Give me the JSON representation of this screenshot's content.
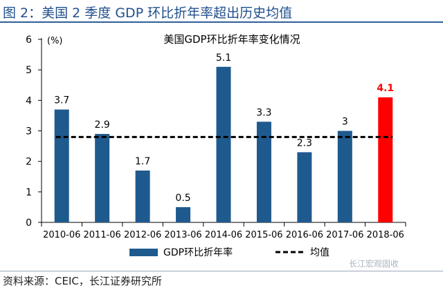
{
  "figure": {
    "title": "图 2：美国 2 季度 GDP 环比折年率超出历史均值",
    "source": "资料来源：CEIC，长江证券研究所",
    "watermark": "长江宏观固收"
  },
  "chart_data": {
    "type": "bar",
    "title": "美国GDP环比折年率变化情况",
    "unit_label": "(%)",
    "categories": [
      "2010-06",
      "2011-06",
      "2012-06",
      "2013-06",
      "2014-06",
      "2015-06",
      "2016-06",
      "2017-06",
      "2018-06"
    ],
    "series": [
      {
        "name": "GDP环比折年率",
        "values": [
          3.7,
          2.9,
          1.7,
          0.5,
          5.1,
          3.3,
          2.3,
          3.0,
          4.1
        ]
      }
    ],
    "value_labels": [
      "3.7",
      "2.9",
      "1.7",
      "0.5",
      "5.1",
      "3.3",
      "2.3",
      "3",
      "4.1"
    ],
    "mean_line": {
      "name": "均值",
      "value": 2.8
    },
    "highlight_index": 8,
    "ylim": [
      0,
      6
    ],
    "yticks": [
      0,
      1,
      2,
      3,
      4,
      5,
      6
    ],
    "grid": false,
    "legend_position": "bottom-center",
    "colors": {
      "bar": "#1f5a8e",
      "highlight": "#ff0000",
      "highlight_label": "#ff0000",
      "mean_line": "#000000",
      "text": "#000000"
    }
  }
}
